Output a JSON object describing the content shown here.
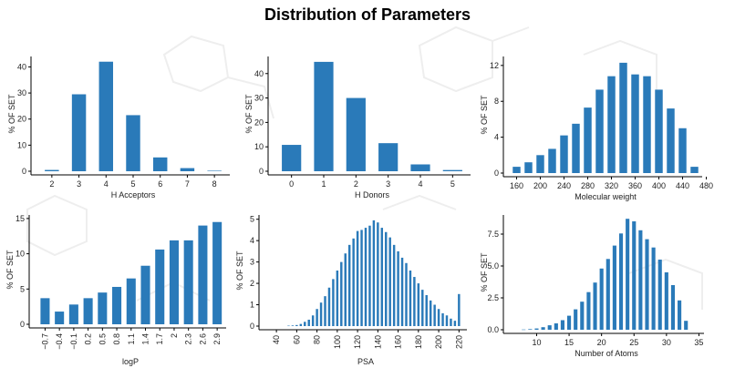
{
  "page": {
    "title": "Distribution of Parameters"
  },
  "style": {
    "bar_color": "#2a7ab9",
    "axis_color": "#000000",
    "background": "#ffffff"
  },
  "chart_data": [
    {
      "type": "bar",
      "xlabel": "H Acceptors",
      "ylabel": "% OF SET",
      "x": [
        2,
        3,
        4,
        5,
        6,
        7,
        8
      ],
      "values": [
        0.5,
        29.5,
        42,
        21.5,
        5.3,
        1.2,
        0.2
      ],
      "xlim": [
        1.5,
        8.5
      ],
      "ylim": [
        0,
        44
      ],
      "xticks": [
        "2",
        "3",
        "4",
        "5",
        "6",
        "7",
        "8"
      ],
      "yticks": [
        0,
        10,
        20,
        30,
        40
      ]
    },
    {
      "type": "bar",
      "xlabel": "H Donors",
      "ylabel": "% OF SET",
      "x": [
        0,
        1,
        2,
        3,
        4,
        5
      ],
      "values": [
        10.8,
        44.8,
        30,
        11.5,
        2.8,
        0.5
      ],
      "xlim": [
        -0.5,
        5.5
      ],
      "ylim": [
        0,
        47
      ],
      "xticks": [
        "0",
        "1",
        "2",
        "3",
        "4",
        "5"
      ],
      "yticks": [
        0,
        10,
        20,
        30,
        40
      ]
    },
    {
      "type": "bar",
      "xlabel": "Molecular weight",
      "ylabel": "% OF SET",
      "x": [
        160,
        180,
        200,
        220,
        240,
        260,
        280,
        300,
        320,
        340,
        360,
        380,
        400,
        420,
        440,
        460
      ],
      "values": [
        0.7,
        1.2,
        2.0,
        2.7,
        4.2,
        5.5,
        7.3,
        9.3,
        10.8,
        12.3,
        11.0,
        10.8,
        9.3,
        7.2,
        5.0,
        0.7
      ],
      "xlim": [
        150,
        470
      ],
      "ylim": [
        0,
        13
      ],
      "xticks": [
        "160",
        "200",
        "240",
        "280",
        "320",
        "360",
        "400",
        "440",
        "480"
      ],
      "yticks": [
        0,
        4,
        8,
        12
      ]
    },
    {
      "type": "bar",
      "xlabel": "logP",
      "ylabel": "% OF SET",
      "x": [
        -0.7,
        -0.4,
        -0.1,
        0.2,
        0.5,
        0.8,
        1.1,
        1.4,
        1.7,
        2.0,
        2.3,
        2.6,
        2.9
      ],
      "values": [
        3.7,
        1.8,
        2.8,
        3.7,
        4.5,
        5.3,
        6.5,
        8.3,
        10.6,
        11.9,
        11.9,
        14.0,
        14.5
      ],
      "xlim": [
        -0.88,
        3.05
      ],
      "ylim": [
        0,
        15.5
      ],
      "xticks": [
        "-0.7",
        "-0.4",
        "-0.1",
        "0.2",
        "0.5",
        "0.8",
        "1.1",
        "1.4",
        "1.7",
        "2",
        "2.3",
        "2.6",
        "2.9"
      ],
      "yticks": [
        0,
        5,
        10,
        15
      ]
    },
    {
      "type": "bar",
      "xlabel": "PSA",
      "ylabel": "% OF SET",
      "x": [
        52,
        56,
        60,
        64,
        68,
        72,
        76,
        80,
        84,
        88,
        92,
        96,
        100,
        104,
        108,
        112,
        116,
        120,
        124,
        128,
        132,
        136,
        140,
        144,
        148,
        152,
        156,
        160,
        164,
        168,
        172,
        176,
        180,
        184,
        188,
        192,
        196,
        200,
        204,
        208,
        212,
        216,
        220
      ],
      "values": [
        0.02,
        0.03,
        0.05,
        0.1,
        0.2,
        0.3,
        0.5,
        0.8,
        1.1,
        1.4,
        1.8,
        2.2,
        2.6,
        3.0,
        3.4,
        3.8,
        4.1,
        4.45,
        4.5,
        4.6,
        4.7,
        4.95,
        4.85,
        4.6,
        4.4,
        4.15,
        3.8,
        3.5,
        3.2,
        2.95,
        2.6,
        2.3,
        2.0,
        1.7,
        1.45,
        1.2,
        1.0,
        0.8,
        0.6,
        0.5,
        0.35,
        0.25,
        1.5
      ],
      "xlim": [
        30,
        226
      ],
      "ylim": [
        0,
        5.2
      ],
      "xticks": [
        "40",
        "60",
        "80",
        "100",
        "120",
        "140",
        "160",
        "180",
        "200",
        "220"
      ],
      "yticks": [
        0,
        1,
        2,
        3,
        4,
        5
      ]
    },
    {
      "type": "bar",
      "xlabel": "Number of Atoms",
      "ylabel": "% OF SET",
      "x": [
        8,
        9,
        10,
        11,
        12,
        13,
        14,
        15,
        16,
        17,
        18,
        19,
        20,
        21,
        22,
        23,
        24,
        25,
        26,
        27,
        28,
        29,
        30,
        31,
        32,
        33
      ],
      "values": [
        0.02,
        0.05,
        0.1,
        0.2,
        0.35,
        0.5,
        0.75,
        1.1,
        1.6,
        2.2,
        2.95,
        3.7,
        4.8,
        5.55,
        6.6,
        7.55,
        8.7,
        8.5,
        7.8,
        7.1,
        6.45,
        5.5,
        4.5,
        3.5,
        2.3,
        0.7
      ],
      "xlim": [
        6,
        35.5
      ],
      "ylim": [
        0,
        9
      ],
      "xticks": [
        "10",
        "15",
        "20",
        "25",
        "30",
        "35"
      ],
      "yticks": [
        "0.0",
        "2.5",
        "5.0",
        "7.5"
      ]
    }
  ]
}
